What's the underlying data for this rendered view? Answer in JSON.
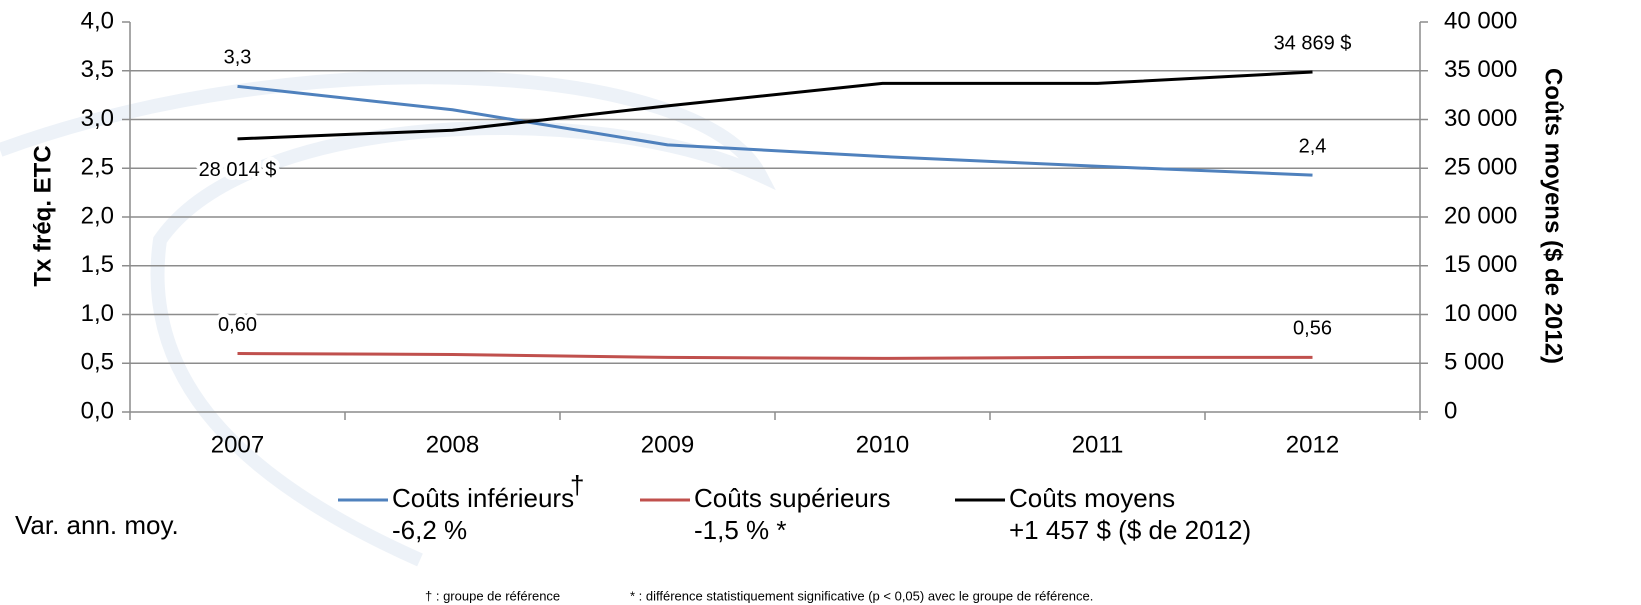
{
  "chart_data": {
    "type": "line",
    "y_label": "Tx fréq. ETC",
    "y2_label": "Coûts moyens ($ de 2012)",
    "categories": [
      "2007",
      "2008",
      "2009",
      "2010",
      "2011",
      "2012"
    ],
    "ylim": [
      0,
      4
    ],
    "yticks": [
      {
        "value": 0,
        "label": "0,0"
      },
      {
        "value": 0.5,
        "label": "0,5"
      },
      {
        "value": 1,
        "label": "1,0"
      },
      {
        "value": 1.5,
        "label": "1,5"
      },
      {
        "value": 2,
        "label": "2,0"
      },
      {
        "value": 2.5,
        "label": "2,5"
      },
      {
        "value": 3,
        "label": "3,0"
      },
      {
        "value": 3.5,
        "label": "3,5"
      },
      {
        "value": 4,
        "label": "4,0"
      }
    ],
    "y2lim": [
      0,
      40000
    ],
    "y2ticks": [
      0,
      {
        "value": 5000,
        "label": "5 000"
      },
      {
        "value": 10000,
        "label": "10 000"
      },
      {
        "value": 15000,
        "label": "15 000"
      },
      {
        "value": 20000,
        "label": "20 000"
      },
      {
        "value": 25000,
        "label": "25 000"
      },
      {
        "value": 30000,
        "label": "30 000"
      },
      {
        "value": 35000,
        "label": "35 000"
      },
      {
        "value": 40000,
        "label": "40 000"
      }
    ],
    "grid": true,
    "legend_title": "Var. ann. moy.",
    "series": [
      {
        "name": "Coûts inférieurs",
        "name_mark": "†",
        "annotation": "-6,2 %",
        "color": "#4f81bd",
        "values": [
          3.34,
          3.1,
          2.74,
          2.62,
          2.52,
          2.43
        ],
        "value_labels": [
          "3,3",
          null,
          null,
          null,
          null,
          "2,4"
        ]
      },
      {
        "name": "Coûts supérieurs",
        "annotation": "-1,5 % *",
        "color": "#c0504d",
        "values": [
          0.6,
          0.59,
          0.56,
          0.55,
          0.56,
          0.56
        ],
        "value_labels": [
          "0,60",
          null,
          null,
          null,
          null,
          "0,56"
        ]
      },
      {
        "name": "Coûts moyens",
        "annotation": "+1 457 $ ($ de 2012)",
        "color": "#000000",
        "axis": "y2",
        "values": [
          28014,
          28900,
          31400,
          33700,
          33700,
          34869
        ],
        "value_labels": [
          "28 014 $",
          null,
          null,
          null,
          null,
          "34 869 $"
        ]
      }
    ],
    "footnotes": [
      "† : groupe de référence",
      "* : différence statistiquement significative (p < 0,05) avec le groupe de référence."
    ]
  }
}
